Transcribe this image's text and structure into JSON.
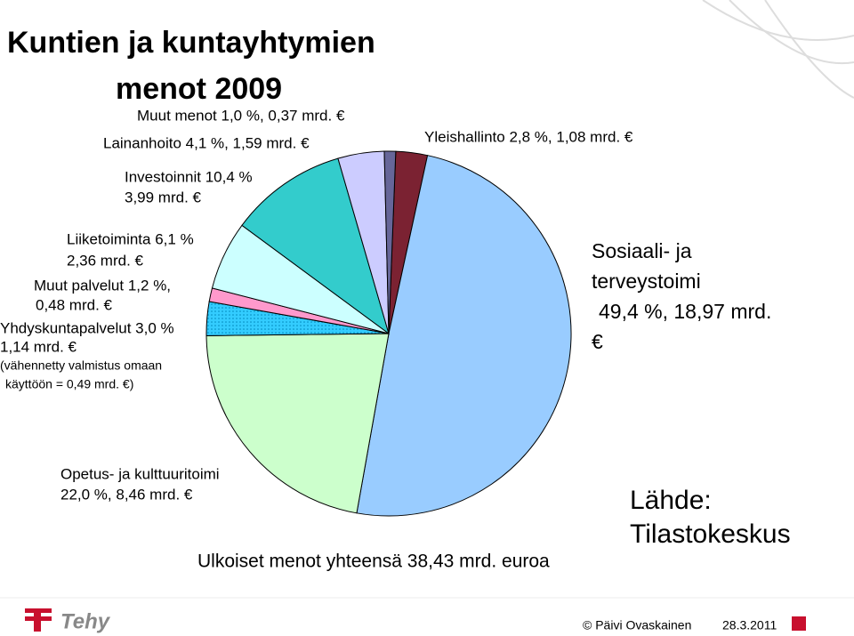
{
  "header": {
    "title_lines": [
      "Kuntien ja kuntayhtymien",
      "menot 2009"
    ]
  },
  "chart_data": {
    "type": "pie",
    "labels": [
      [
        "Yleishallinto 2,8 %, 1,08 mrd. €"
      ],
      [
        "Sosiaali- ja",
        "terveystoimi",
        "49,4 %, 18,97 mrd.",
        "€"
      ],
      [
        "Opetus- ja kulttuuritoimi",
        "22,0 %,  8,46 mrd. €"
      ],
      [
        "Yhdyskuntapalvelut 3,0 %",
        "1,14 mrd. €",
        "(vähennetty valmistus omaan",
        "käyttöön = 0,49 mrd. €)"
      ],
      [
        "Muut palvelut 1,2 %,",
        "0,48 mrd. €"
      ],
      [
        "Liiketoiminta 6,1 %",
        "2,36 mrd. €"
      ],
      [
        "Investoinnit 10,4 %",
        "3,99 mrd. €"
      ],
      [
        "Lainanhoito 4,1 %, 1,59 mrd. €"
      ],
      [
        "Muut menot 1,0 %, 0,37 mrd. €"
      ]
    ],
    "values": [
      2.8,
      49.4,
      22.0,
      3.0,
      1.2,
      6.1,
      10.4,
      4.1,
      1.0
    ],
    "colors": [
      "#7b2232",
      "#99ccff",
      "#ccffcc",
      "#33ccff",
      "#ff99cc",
      "#ccffff",
      "#33cccc",
      "#ccccff",
      "#666699"
    ]
  },
  "footer": {
    "total": "Ulkoiset menot yhteensä 38,43 mrd. euroa",
    "source_lines": [
      "Lähde:",
      "Tilastokeskus"
    ],
    "author": "© Päivi Ovaskainen",
    "date": "28.3.2011",
    "logo": "Tehy"
  }
}
